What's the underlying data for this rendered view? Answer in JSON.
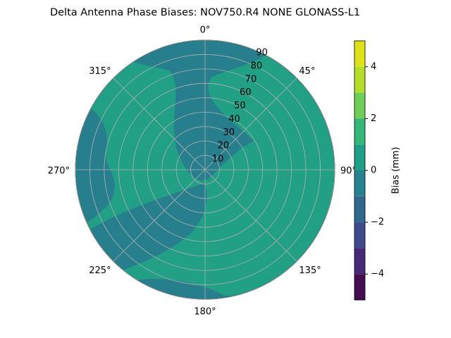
{
  "chart_data": {
    "type": "polar-contour",
    "title": "Delta Antenna Phase Biases: NOV750.R4       NONE GLONASS-L1",
    "xticks": [
      {
        "value": 0,
        "label": "0°"
      },
      {
        "value": 45,
        "label": "45°"
      },
      {
        "value": 90,
        "label": "90°"
      },
      {
        "value": 135,
        "label": "135°"
      },
      {
        "value": 180,
        "label": "180°"
      },
      {
        "value": 225,
        "label": "225°"
      },
      {
        "value": 270,
        "label": "270°"
      },
      {
        "value": 315,
        "label": "315°"
      }
    ],
    "ylim": [
      0,
      90
    ],
    "yticks": [
      10,
      20,
      30,
      40,
      50,
      60,
      70,
      80,
      90
    ],
    "grid": true,
    "colorbar": {
      "label": "Bias (mm)",
      "lim": [
        -5,
        5
      ],
      "levels": [
        -5,
        -4,
        -3,
        -2,
        -1,
        0,
        1,
        2,
        3,
        4,
        5
      ],
      "colors": [
        "#450d54",
        "#482878",
        "#3e4a89",
        "#31688e",
        "#26828e",
        "#1f9e89",
        "#35b779",
        "#6ece58",
        "#b5de2b",
        "#dde318"
      ],
      "ticks": [
        {
          "value": -4,
          "label": "−4"
        },
        {
          "value": -2,
          "label": "−2"
        },
        0,
        2,
        4
      ]
    }
  }
}
